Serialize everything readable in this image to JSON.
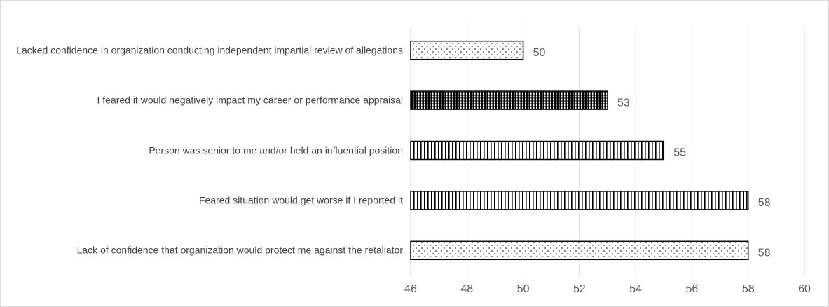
{
  "chart_data": {
    "type": "barh",
    "categories": [
      "Lacked confidence in organization conducting independent impartial review of allegations",
      "I feared it would negatively impact my career or performance appraisal",
      "Person was senior to me and/or held an influential position",
      "Feared situation would get worse if I reported it",
      "Lack of confidence that organization would protect me against the retaliator"
    ],
    "values": [
      50,
      53,
      55,
      58,
      58
    ],
    "patterns": [
      "dots",
      "dense-stripes",
      "stripes",
      "stripes",
      "dots"
    ],
    "color": "#000000",
    "xlim": [
      46,
      60
    ],
    "xticks": [
      46,
      48,
      50,
      52,
      54,
      56,
      58,
      60
    ],
    "grid": true
  }
}
